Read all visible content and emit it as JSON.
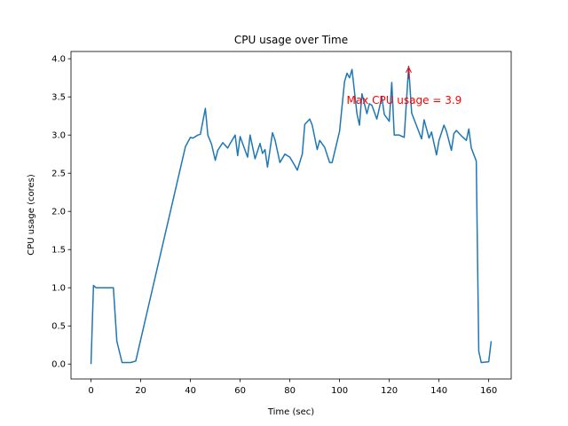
{
  "chart_data": {
    "type": "line",
    "title": "CPU usage over Time",
    "xlabel": "Time (sec)",
    "ylabel": "CPU usage (cores)",
    "x": [
      0,
      1,
      2,
      4,
      6,
      9,
      10.4,
      12.5,
      16,
      18,
      38,
      40,
      41,
      43,
      44,
      46,
      47,
      48.5,
      50,
      51,
      53,
      55,
      56,
      58,
      59,
      60,
      62,
      63,
      64,
      66,
      68,
      69,
      70,
      71,
      73,
      74,
      76,
      78,
      80,
      82,
      83,
      85,
      86,
      88,
      89,
      91,
      92,
      94,
      96,
      97,
      100,
      102,
      103,
      104,
      105,
      107,
      108,
      109,
      111,
      112,
      113,
      115,
      117,
      118,
      120,
      121,
      122,
      124,
      126,
      127.8,
      129,
      131,
      133,
      134,
      136,
      137,
      139,
      140,
      142,
      143,
      145,
      146,
      147,
      149,
      151,
      152,
      153,
      155,
      156,
      157,
      160,
      161
    ],
    "series": [
      {
        "name": "CPU usage",
        "color": "#1f77b4",
        "values": [
          0,
          1.03,
          1.0,
          1.0,
          1.0,
          1.0,
          0.3,
          0.02,
          0.02,
          0.04,
          2.85,
          2.97,
          2.96,
          3.0,
          3.01,
          3.35,
          3.0,
          2.88,
          2.67,
          2.8,
          2.9,
          2.83,
          2.89,
          3.0,
          2.73,
          2.98,
          2.8,
          2.71,
          3.0,
          2.69,
          2.89,
          2.76,
          2.81,
          2.58,
          3.03,
          2.94,
          2.64,
          2.75,
          2.71,
          2.6,
          2.54,
          2.75,
          3.14,
          3.21,
          3.13,
          2.81,
          2.93,
          2.84,
          2.64,
          2.64,
          3.05,
          3.7,
          3.81,
          3.75,
          3.86,
          3.28,
          3.13,
          3.54,
          3.28,
          3.41,
          3.39,
          3.21,
          3.5,
          3.27,
          3.18,
          3.69,
          3.0,
          3.0,
          2.97,
          3.9,
          3.29,
          3.12,
          2.95,
          3.2,
          2.96,
          3.04,
          2.74,
          2.93,
          3.13,
          3.05,
          2.8,
          3.02,
          3.06,
          2.99,
          2.93,
          3.08,
          2.83,
          2.66,
          0.17,
          0.02,
          0.03,
          0.3
        ]
      }
    ],
    "xlim": [
      -8.05,
      169.05
    ],
    "ylim": [
      -0.195,
      4.095
    ],
    "xticks": [
      0,
      20,
      40,
      60,
      80,
      100,
      120,
      140,
      160
    ],
    "yticks": [
      {
        "value": 0,
        "label": "0.0"
      },
      0.5,
      {
        "value": 1,
        "label": "1.0"
      },
      1.5,
      {
        "value": 2,
        "label": "2.0"
      },
      2.5,
      {
        "value": 3,
        "label": "3.0"
      },
      3.5,
      {
        "value": 4,
        "label": "4.0"
      }
    ],
    "annotation": {
      "text": "Max CPU usage = 3.9",
      "x": 127.8,
      "y": 3.9,
      "color": "#ff0000"
    }
  }
}
